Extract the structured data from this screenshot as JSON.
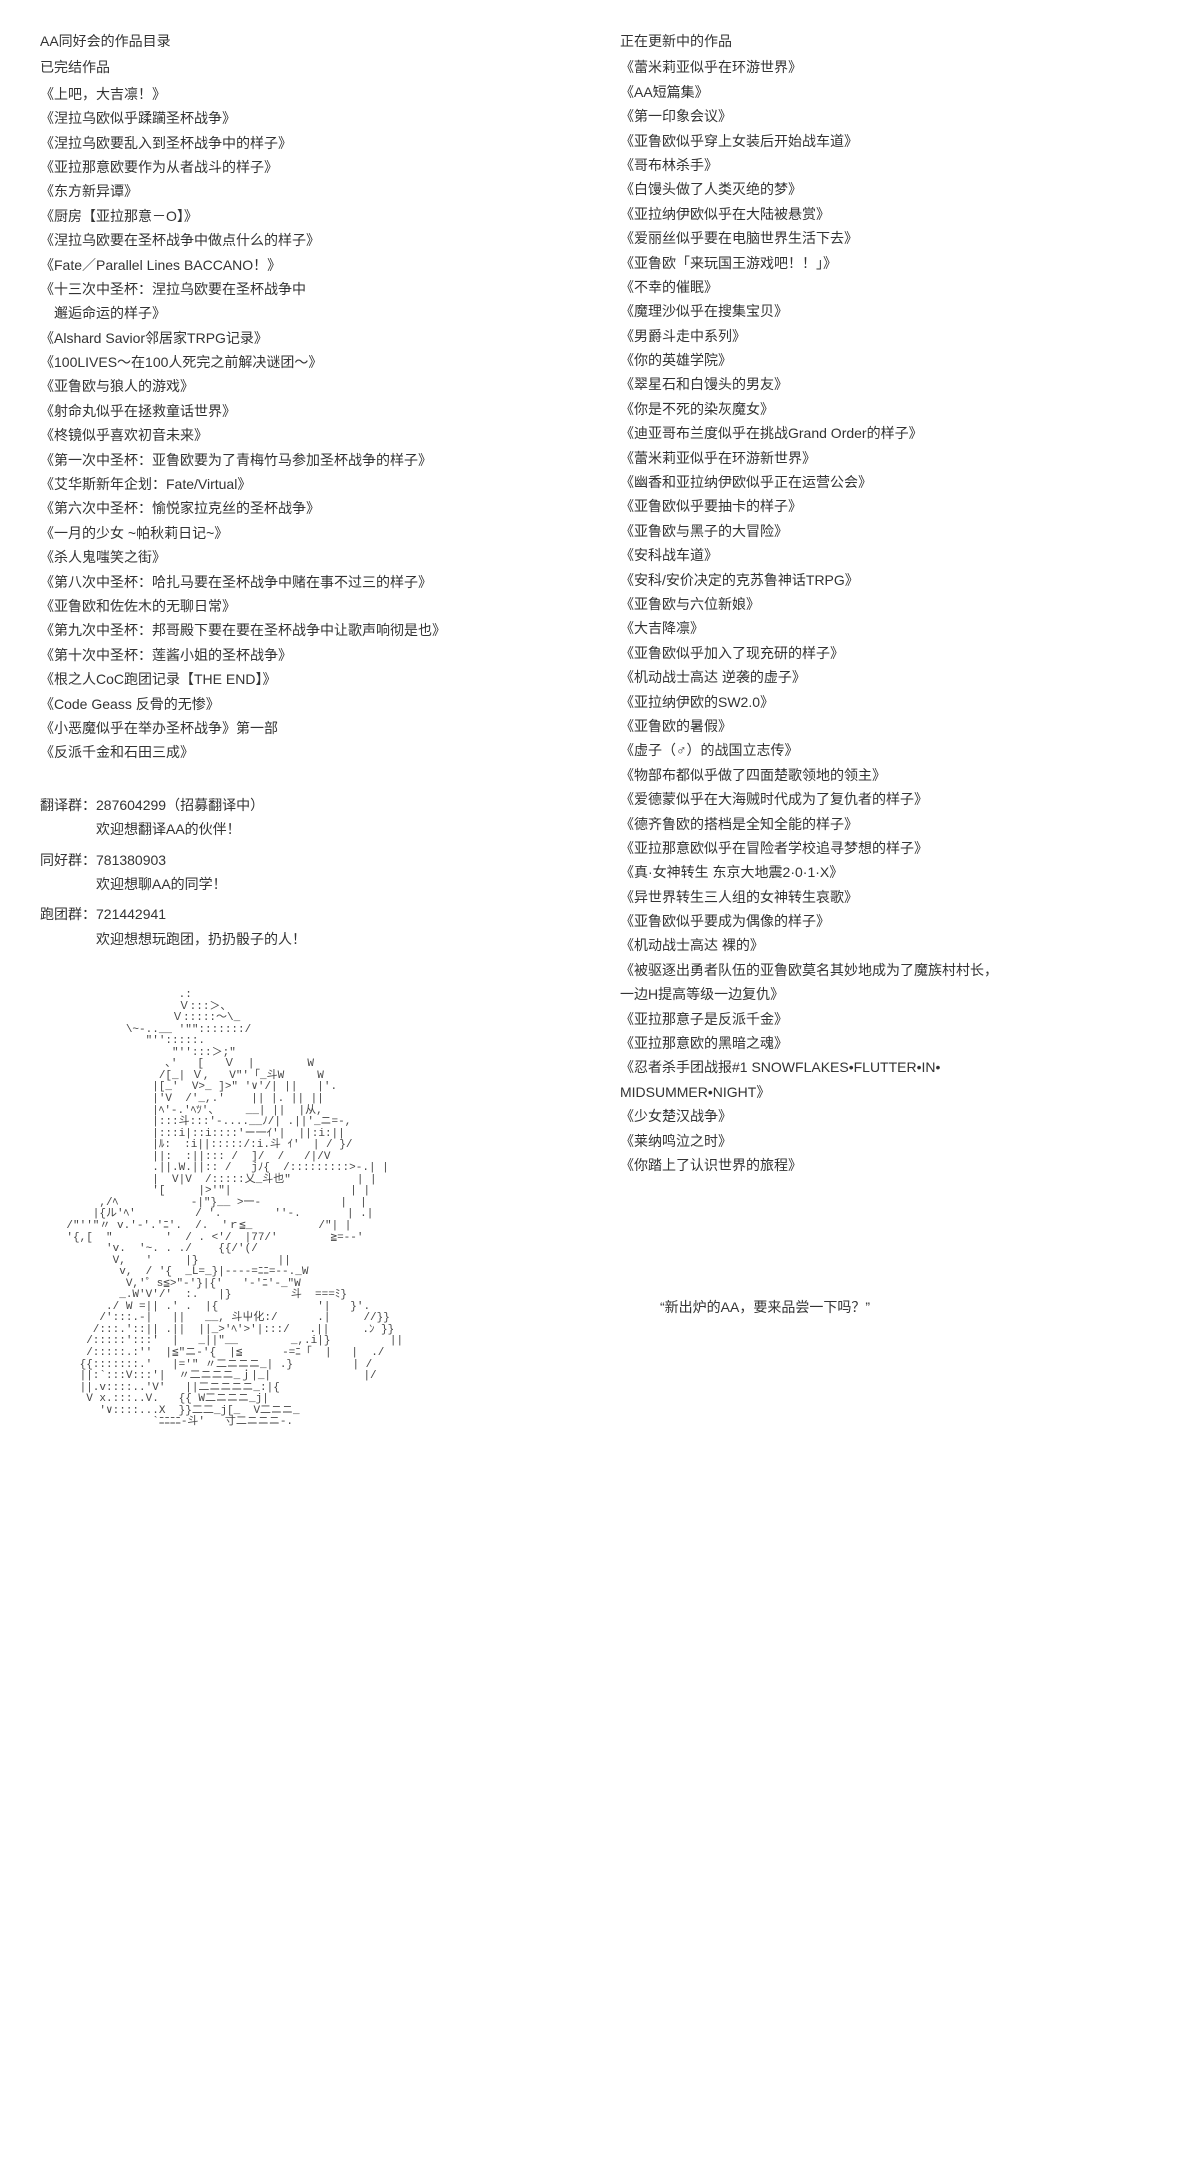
{
  "left": {
    "title": "AA同好会的作品目录",
    "completed_title": "已完结作品",
    "completed_works": [
      "《上吧，大吉凛！》",
      "《涅拉乌欧似乎蹂躏圣杯战争》",
      "《涅拉乌欧要乱入到圣杯战争中的样子》",
      "《亚拉那意欧要作为从者战斗的样子》",
      "《东方新异谭》",
      "《厨房【亚拉那意－O】》",
      "《涅拉乌欧要在圣杯战争中做点什么的样子》",
      "《Fate／Parallel Lines BACCANO！》",
      "《十三次中圣杯：涅拉乌欧要在圣杯战争中",
      "　邂逅命运的样子》",
      "《Alshard Savior邻居家TRPG记录》",
      "《100LIVES～在100人死完之前解决谜团～》",
      "《亚鲁欧与狼人的游戏》",
      "《射命丸似乎在拯救童话世界》",
      "《柊镜似乎喜欢初音未来》",
      "《第一次中圣杯：亚鲁欧要为了青梅竹马参加圣杯战争的样子》",
      "《艾华斯新年企划：Fate/Virtual》",
      "《第六次中圣杯：愉悦家拉克丝的圣杯战争》",
      "《一月的少女 ~帕秋莉日记~》",
      "《杀人鬼嗤笑之街》",
      "《第八次中圣杯：哈扎马要在圣杯战争中赌在事不过三的样子》",
      "《亚鲁欧和佐佐木的无聊日常》",
      "《第九次中圣杯：邦哥殿下要在要在圣杯战争中让歌声响彻是也》",
      "《第十次中圣杯：莲酱小姐的圣杯战争》",
      "《根之人CoC跑团记录【THE END】》",
      "《Code Geass 反骨的无惨》",
      "《小恶魔似乎在举办圣杯战争》第一部",
      "《反派千金和石田三成》"
    ],
    "groups": [
      {
        "label": "翻译群：287604299（招募翻译中）",
        "sub": "欢迎想翻译AA的伙伴！"
      },
      {
        "label": "同好群：781380903",
        "sub": "欢迎想聊AA的同学！"
      },
      {
        "label": "跑团群：721442941",
        "sub": "欢迎想想玩跑团，扔扔骰子的人！"
      }
    ],
    "ascii": "                     .:\n                     Ｖ:::＞、\n                    Ｖ:::::～\\_\n             \\~-..__ '\"\":::::::/\n                \"'':::::.\n                    \"'':::＞;\"\n                   ､'   [   Ｖ  |        W\n                  /[_| Ｖ,   V\"'「_斗W     W\n                 |[_'  V>_ ]>\" '∨'/| ||   |'.\n                 |'V  /'_,.'    || |. || ||\n                 |ﾍ'-.'ﾍﾂ'、    __| ||  |从,\n                 |:::斗:::'-....__ﾉ/| .||'_ニ=-,\n                 |:::i|::i::::'ー一ｲ'|  ||:i:||\n                 |ﾙ:  :i||:::::/:i.斗 ｲ'  | / }/\n                 ||:  :||::: /  ]/  /   /|/V\n                 .||.W.||:: /   jﾉ{  /:::::::::>-.| |\n                 |  V|V  /:::::乂_斗也\"          | |\n                 '[     |>'\"|                  | |\n         ,/ﾍ           -|\"}__ >一-            |  |\n        |{ル'ﾍ'         / '.        ''-.       | .|\n    /\"''\"〃 v.'-'.'ﾆ'.  /.  'ｒ≦_          /\"| |\n    '{,[  \"        '  / . <'/  |77/'        ≧=--'\n          'v.  '~. . ./    {{/'(/\n           V,   '     |}            ||\n            v,  / '{  _L=_}|----=ﾆﾆ=--._W\n             V,'゜s≦>\"-'}|{'   '-'ﾆ'-_\"W\n            _.W'V'/'  :.   |}         斗  ===ﾐ}\n          ./ W =|| .' .  |{               '|   }'.\n         /':::.-|   ||   __, 斗屮化:/      .|     //}}\n        /:::.'::|| .||  ||_>'ﾍ'>'|:::/   .||     .ﾝ }}\n       /:::::':::'  |   _||\"__        _,.i|}         ||\n       /:::::.:''  |≦\"ニ-'{  |≦      -=ﾆ「  |   |  ./\n      {{:::::::.'   |='\" 〃二ニニニ_| .}         | /\n      ||:`:::V:::'|  〃二ニニニ_ｊ|_|              |/\n      ||.v::::..'V'   ||二ニニニニ_:|{\n       V x.:::..V.   {{ W二ニニニ_j|\n         '∨::::...X  }}二二_j[_  V二ニニ_\n                 `ﾆﾆﾆﾆ-斗'   寸二ニニニ-."
  },
  "right": {
    "updating_title": "正在更新中的作品",
    "updating_works": [
      "《蕾米莉亚似乎在环游世界》",
      "《AA短篇集》",
      "《第一印象会议》",
      "《亚鲁欧似乎穿上女装后开始战车道》",
      "《哥布林杀手》",
      "《白馒头做了人类灭绝的梦》",
      "《亚拉纳伊欧似乎在大陆被悬赏》",
      "《爱丽丝似乎要在电脑世界生活下去》",
      "《亚鲁欧「来玩国王游戏吧！！」》",
      "《不幸的催眠》",
      "《魔理沙似乎在搜集宝贝》",
      "《男爵斗走中系列》",
      "《你的英雄学院》",
      "《翠星石和白馒头的男友》",
      "《你是不死的染灰魔女》",
      "《迪亚哥布兰度似乎在挑战Grand Order的样子》",
      "《蕾米莉亚似乎在环游新世界》",
      "《幽香和亚拉纳伊欧似乎正在运营公会》",
      "《亚鲁欧似乎要抽卡的样子》",
      "《亚鲁欧与黑子的大冒险》",
      "《安科战车道》",
      "《安科/安价决定的克苏鲁神话TRPG》",
      "《亚鲁欧与六位新娘》",
      "《大吉降凛》",
      "《亚鲁欧似乎加入了现充研的样子》",
      "《机动战士高达 逆袭的虚子》",
      "《亚拉纳伊欧的SW2.0》",
      "《亚鲁欧的暑假》",
      "《虚子（♂）的战国立志传》",
      "《物部布都似乎做了四面楚歌领地的领主》",
      "《爱德蒙似乎在大海贼时代成为了复仇者的样子》",
      "《德齐鲁欧的搭档是全知全能的样子》",
      "《亚拉那意欧似乎在冒险者学校追寻梦想的样子》",
      "《真·女神转生 东京大地震2·0·1·X》",
      "《异世界转生三人组的女神转生哀歌》",
      "《亚鲁欧似乎要成为偶像的样子》",
      "《机动战士高达 裸的》",
      "《被驱逐出勇者队伍的亚鲁欧莫名其妙地成为了魔族村村长，",
      "一边H提高等级一边复仇》",
      "《亚拉那意子是反派千金》",
      "《亚拉那意欧的黑暗之魂》",
      "《忍者杀手团战报#1 SNOWFLAKES•FLUTTER•IN•",
      "MIDSUMMER•NIGHT》",
      "《少女楚汉战争》",
      "《莱纳鸣泣之时》",
      "《你踏上了认识世界的旅程》"
    ],
    "quote": "“新出炉的AA，要来品尝一下吗？”"
  }
}
